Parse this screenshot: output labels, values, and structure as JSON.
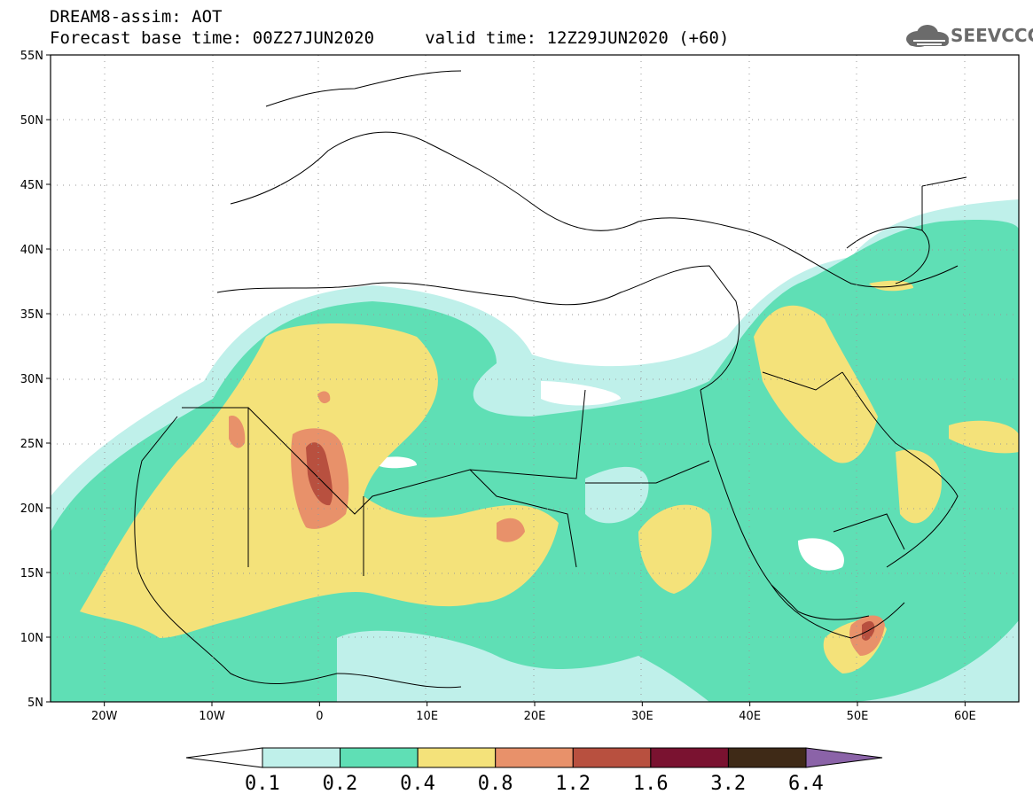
{
  "title": {
    "line1": "DREAM8-assim: AOT",
    "line2": "Forecast base time: 00Z27JUN2020     valid time: 12Z29JUN2020 (+60)"
  },
  "logo": {
    "text": "SEEVCCC",
    "icon": "cloud-icon"
  },
  "map": {
    "lon_ticks": [
      "20W",
      "10W",
      "0",
      "10E",
      "20E",
      "30E",
      "40E",
      "50E",
      "60E"
    ],
    "lat_ticks": [
      "55N",
      "50N",
      "45N",
      "40N",
      "35N",
      "30N",
      "25N",
      "20N",
      "15N",
      "10N",
      "5N"
    ],
    "lon_range": [
      -25,
      65
    ],
    "lat_range": [
      5,
      55
    ],
    "field": "AOT"
  },
  "colorbar": {
    "labels": [
      "0.1",
      "0.2",
      "0.4",
      "0.8",
      "1.2",
      "1.6",
      "3.2",
      "6.4"
    ],
    "colors": [
      "#ffffff",
      "#bff0ea",
      "#5fdfb5",
      "#f4e27a",
      "#e8916a",
      "#b8503f",
      "#7a1230",
      "#3f2a17",
      "#8b63a8"
    ]
  }
}
